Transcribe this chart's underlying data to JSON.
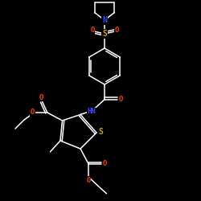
{
  "background_color": "#000000",
  "line_color": "#ffffff",
  "atom_colors": {
    "N": "#4444ff",
    "O": "#ff4400",
    "S": "#ccaa00",
    "C": "#ffffff",
    "H": "#ffffff"
  },
  "figsize": [
    2.5,
    2.5
  ],
  "dpi": 100,
  "lw": 1.1
}
